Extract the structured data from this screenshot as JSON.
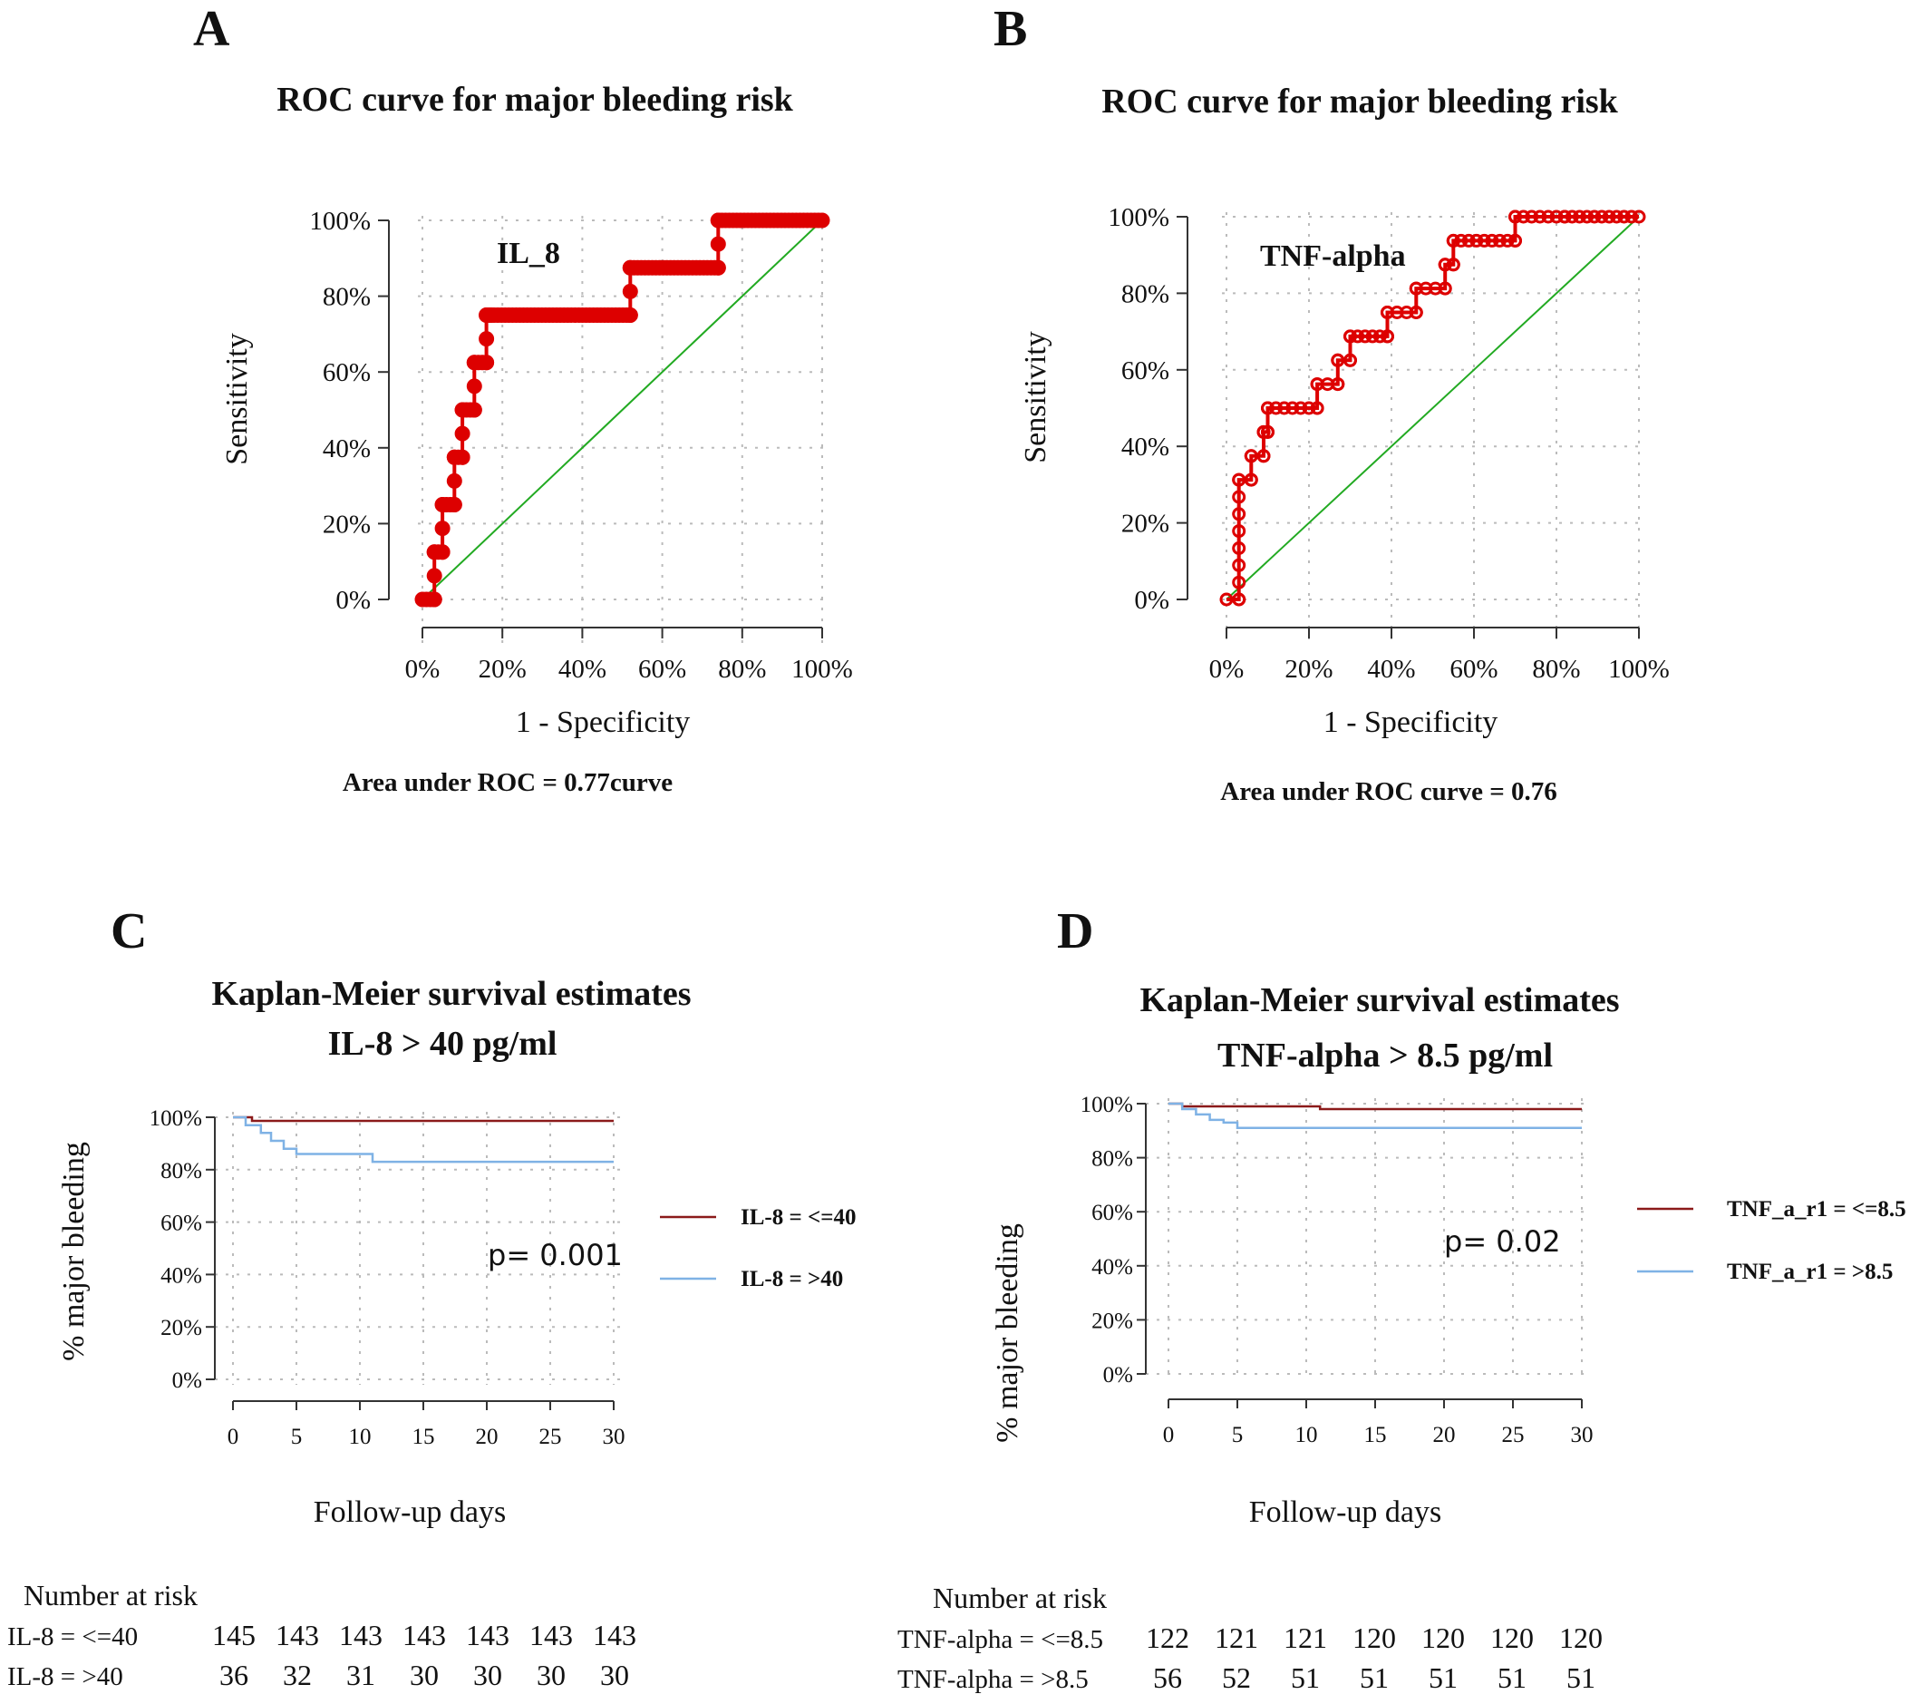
{
  "chart_data": [
    {
      "panel": "A",
      "type": "line",
      "title": "ROC curve for major bleeding risk",
      "curve_label": "IL_8",
      "xlabel": "1 - Specificity",
      "ylabel": "Sensitivity",
      "footer": "Area under ROC = 0.77curve",
      "xticks": [
        "0%",
        "20%",
        "40%",
        "60%",
        "80%",
        "100%"
      ],
      "yticks": [
        "0%",
        "20%",
        "40%",
        "60%",
        "80%",
        "100%"
      ],
      "xlim": [
        0,
        1
      ],
      "ylim": [
        0,
        1
      ],
      "grid": true,
      "colors": {
        "curve": "#dd0000",
        "diagonal": "#22aa22"
      },
      "series": [
        {
          "x": [
            0,
            0.03,
            0.03,
            0.05,
            0.05,
            0.08,
            0.08,
            0.1,
            0.1,
            0.13,
            0.13,
            0.16,
            0.16,
            0.17,
            0.17,
            0.52,
            0.52,
            0.74,
            0.74,
            1.0
          ],
          "y": [
            0,
            0,
            0.125,
            0.125,
            0.25,
            0.25,
            0.375,
            0.375,
            0.5,
            0.5,
            0.625,
            0.625,
            0.75,
            0.75,
            0.75,
            0.75,
            0.875,
            0.875,
            1.0,
            1.0
          ]
        }
      ]
    },
    {
      "panel": "B",
      "type": "line",
      "title": "ROC curve for major bleeding risk",
      "curve_label": "TNF-alpha",
      "xlabel": "1 - Specificity",
      "ylabel": "Sensitivity",
      "footer": "Area under ROC curve = 0.76",
      "xticks": [
        "0%",
        "20%",
        "40%",
        "60%",
        "80%",
        "100%"
      ],
      "yticks": [
        "0%",
        "20%",
        "40%",
        "60%",
        "80%",
        "100%"
      ],
      "xlim": [
        0,
        1
      ],
      "ylim": [
        0,
        1
      ],
      "grid": true,
      "colors": {
        "curve": "#dd0000",
        "diagonal": "#22aa22"
      },
      "series": [
        {
          "x": [
            0,
            0.03,
            0.03,
            0.06,
            0.06,
            0.09,
            0.09,
            0.1,
            0.1,
            0.22,
            0.22,
            0.27,
            0.27,
            0.3,
            0.3,
            0.39,
            0.39,
            0.46,
            0.46,
            0.53,
            0.53,
            0.55,
            0.55,
            0.7,
            0.7,
            0.82,
            1.0
          ],
          "y": [
            0,
            0,
            0.3125,
            0.3125,
            0.375,
            0.375,
            0.4375,
            0.4375,
            0.5,
            0.5,
            0.5625,
            0.5625,
            0.625,
            0.625,
            0.6875,
            0.6875,
            0.75,
            0.75,
            0.8125,
            0.8125,
            0.875,
            0.875,
            0.9375,
            0.9375,
            1.0,
            1.0,
            1.0
          ]
        }
      ]
    },
    {
      "panel": "C",
      "type": "line",
      "title": "Kaplan-Meier survival estimates",
      "subtitle": "IL-8 > 40 pg/ml",
      "xlabel": "Follow-up days",
      "ylabel": "% major bleeding",
      "xticks": [
        "0",
        "5",
        "10",
        "15",
        "20",
        "25",
        "30"
      ],
      "yticks": [
        "0%",
        "20%",
        "40%",
        "60%",
        "80%",
        "100%"
      ],
      "xlim": [
        0,
        30
      ],
      "ylim": [
        0,
        1
      ],
      "p_value": "p=  0.001",
      "legend_position": "right",
      "grid": true,
      "series": [
        {
          "name": "IL-8 = <=40",
          "color": "#8b1a1a",
          "x": [
            0,
            1.5,
            1.5,
            30
          ],
          "y": [
            1.0,
            1.0,
            0.986,
            0.986
          ]
        },
        {
          "name": "IL-8 = >40",
          "color": "#7fb2e5",
          "x": [
            0,
            1.0,
            1.0,
            2.2,
            2.2,
            3.0,
            3.0,
            4.0,
            4.0,
            5.0,
            5.0,
            11.0,
            11.0,
            30
          ],
          "y": [
            1.0,
            1.0,
            0.97,
            0.97,
            0.94,
            0.94,
            0.91,
            0.91,
            0.88,
            0.88,
            0.86,
            0.86,
            0.83,
            0.83
          ]
        }
      ],
      "risk_table": {
        "header": "Number at risk",
        "rows": [
          {
            "label": "IL-8 = <=40",
            "values": [
              "145",
              "143",
              "143",
              "143",
              "143",
              "143",
              "143"
            ]
          },
          {
            "label": "IL-8 = >40",
            "values": [
              "36",
              "32",
              "31",
              "30",
              "30",
              "30",
              "30"
            ]
          }
        ]
      }
    },
    {
      "panel": "D",
      "type": "line",
      "title": "Kaplan-Meier survival estimates",
      "subtitle": "TNF-alpha > 8.5 pg/ml",
      "xlabel": "Follow-up days",
      "ylabel": "% major bleeding",
      "xticks": [
        "0",
        "5",
        "10",
        "15",
        "20",
        "25",
        "30"
      ],
      "yticks": [
        "0%",
        "20%",
        "40%",
        "60%",
        "80%",
        "100%"
      ],
      "xlim": [
        0,
        30
      ],
      "ylim": [
        0,
        1
      ],
      "p_value": "p=  0.02",
      "legend_position": "right",
      "grid": true,
      "series": [
        {
          "name": "TNF_a_r1 = <=8.5",
          "color": "#8b1a1a",
          "x": [
            0,
            1.0,
            1.0,
            11.0,
            11.0,
            30
          ],
          "y": [
            1.0,
            1.0,
            0.99,
            0.99,
            0.98,
            0.98
          ]
        },
        {
          "name": "TNF_a_r1 = >8.5",
          "color": "#7fb2e5",
          "x": [
            0,
            1.0,
            1.0,
            2.0,
            2.0,
            3.0,
            3.0,
            4.0,
            4.0,
            5.0,
            5.0,
            30
          ],
          "y": [
            1.0,
            1.0,
            0.98,
            0.98,
            0.96,
            0.96,
            0.94,
            0.94,
            0.93,
            0.93,
            0.91,
            0.91
          ]
        }
      ],
      "risk_table": {
        "header": "Number at risk",
        "rows": [
          {
            "label": "TNF-alpha = <=8.5",
            "values": [
              "122",
              "121",
              "121",
              "120",
              "120",
              "120",
              "120"
            ]
          },
          {
            "label": "TNF-alpha = >8.5",
            "values": [
              "56",
              "52",
              "51",
              "51",
              "51",
              "51",
              "51"
            ]
          }
        ]
      }
    }
  ]
}
